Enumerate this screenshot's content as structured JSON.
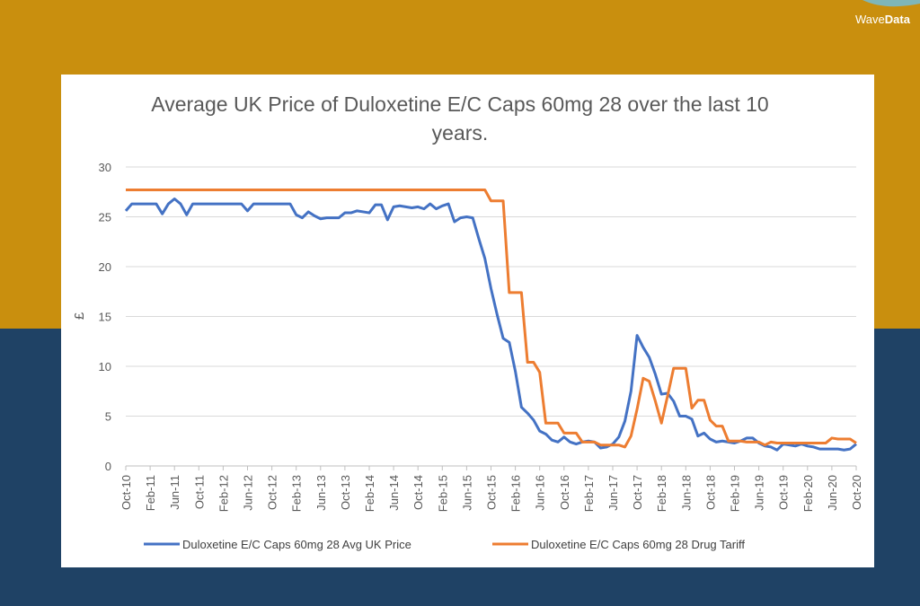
{
  "logo": {
    "light": "Wave",
    "bold": "Data"
  },
  "chart_data": {
    "type": "line",
    "title": "Average UK Price of Duloxetine E/C Caps 60mg 28 over the last 10 years.",
    "y_label": "£",
    "categories": [
      "Oct-10",
      null,
      null,
      null,
      "Feb-11",
      null,
      null,
      null,
      "Jun-11",
      null,
      null,
      null,
      "Oct-11",
      null,
      null,
      null,
      "Feb-12",
      null,
      null,
      null,
      "Jun-12",
      null,
      null,
      null,
      "Oct-12",
      null,
      null,
      null,
      "Feb-13",
      null,
      null,
      null,
      "Jun-13",
      null,
      null,
      null,
      "Oct-13",
      null,
      null,
      null,
      "Feb-14",
      null,
      null,
      null,
      "Jun-14",
      null,
      null,
      null,
      "Oct-14",
      null,
      null,
      null,
      "Feb-15",
      null,
      null,
      null,
      "Jun-15",
      null,
      null,
      null,
      "Oct-15",
      null,
      null,
      null,
      "Feb-16",
      null,
      null,
      null,
      "Jun-16",
      null,
      null,
      null,
      "Oct-16",
      null,
      null,
      null,
      "Feb-17",
      null,
      null,
      null,
      "Jun-17",
      null,
      null,
      null,
      "Oct-17",
      null,
      null,
      null,
      "Feb-18",
      null,
      null,
      null,
      "Jun-18",
      null,
      null,
      null,
      "Oct-18",
      null,
      null,
      null,
      "Feb-19",
      null,
      null,
      null,
      "Jun-19",
      null,
      null,
      null,
      "Oct-19",
      null,
      null,
      null,
      "Feb-20",
      null,
      null,
      null,
      "Jun-20",
      null,
      null,
      null,
      "Oct-20"
    ],
    "series": [
      {
        "name": "Duloxetine E/C Caps 60mg 28 Avg UK Price",
        "color": "#4472c4",
        "values": [
          25.6,
          26.3,
          26.3,
          26.3,
          26.3,
          26.3,
          25.3,
          26.3,
          26.8,
          26.3,
          25.2,
          26.3,
          26.3,
          26.3,
          26.3,
          26.3,
          26.3,
          26.3,
          26.3,
          26.3,
          25.6,
          26.3,
          26.3,
          26.3,
          26.3,
          26.3,
          26.3,
          26.3,
          25.2,
          24.9,
          25.5,
          25.1,
          24.8,
          24.9,
          24.9,
          24.9,
          25.4,
          25.4,
          25.6,
          25.5,
          25.4,
          26.2,
          26.2,
          24.7,
          26.0,
          26.1,
          26.0,
          25.9,
          26.0,
          25.8,
          26.3,
          25.8,
          26.1,
          26.3,
          24.5,
          24.9,
          25.0,
          24.9,
          22.8,
          20.8,
          17.8,
          15.2,
          12.8,
          12.4,
          9.5,
          5.9,
          5.3,
          4.6,
          3.5,
          3.2,
          2.6,
          2.4,
          2.9,
          2.4,
          2.2,
          2.4,
          2.5,
          2.4,
          1.8,
          1.9,
          2.2,
          2.9,
          4.5,
          7.5,
          13.1,
          11.9,
          10.9,
          9.2,
          7.2,
          7.3,
          6.5,
          5.0,
          5.0,
          4.7,
          3.0,
          3.3,
          2.7,
          2.4,
          2.5,
          2.4,
          2.3,
          2.5,
          2.8,
          2.8,
          2.3,
          2.0,
          1.9,
          1.6,
          2.2,
          2.1,
          2.0,
          2.2,
          2.0,
          1.9,
          1.7,
          1.7,
          1.7,
          1.7,
          1.6,
          1.7,
          2.2
        ]
      },
      {
        "name": "Duloxetine E/C Caps 60mg 28 Drug Tariff",
        "color": "#ed7d31",
        "values": [
          27.7,
          27.7,
          27.7,
          27.7,
          27.7,
          27.7,
          27.7,
          27.7,
          27.7,
          27.7,
          27.7,
          27.7,
          27.7,
          27.7,
          27.7,
          27.7,
          27.7,
          27.7,
          27.7,
          27.7,
          27.7,
          27.7,
          27.7,
          27.7,
          27.7,
          27.7,
          27.7,
          27.7,
          27.7,
          27.7,
          27.7,
          27.7,
          27.7,
          27.7,
          27.7,
          27.7,
          27.7,
          27.7,
          27.7,
          27.7,
          27.7,
          27.7,
          27.7,
          27.7,
          27.7,
          27.7,
          27.7,
          27.7,
          27.7,
          27.7,
          27.7,
          27.7,
          27.7,
          27.7,
          27.7,
          27.7,
          27.7,
          27.7,
          27.7,
          27.7,
          26.6,
          26.6,
          26.6,
          17.4,
          17.4,
          17.4,
          10.4,
          10.4,
          9.4,
          4.3,
          4.3,
          4.3,
          3.3,
          3.3,
          3.3,
          2.4,
          2.4,
          2.4,
          2.1,
          2.1,
          2.1,
          2.1,
          1.9,
          3.0,
          5.7,
          8.8,
          8.5,
          6.5,
          4.3,
          7.0,
          9.8,
          9.8,
          9.8,
          5.8,
          6.6,
          6.6,
          4.6,
          4.0,
          4.0,
          2.5,
          2.5,
          2.5,
          2.4,
          2.4,
          2.4,
          2.1,
          2.4,
          2.3,
          2.3,
          2.3,
          2.3,
          2.3,
          2.3,
          2.3,
          2.3,
          2.3,
          2.8,
          2.7,
          2.7,
          2.7,
          2.3
        ]
      }
    ],
    "ylim": [
      0,
      30
    ],
    "yticks": [
      0,
      5,
      10,
      15,
      20,
      25,
      30
    ],
    "grid": true,
    "legend": "bottom"
  }
}
